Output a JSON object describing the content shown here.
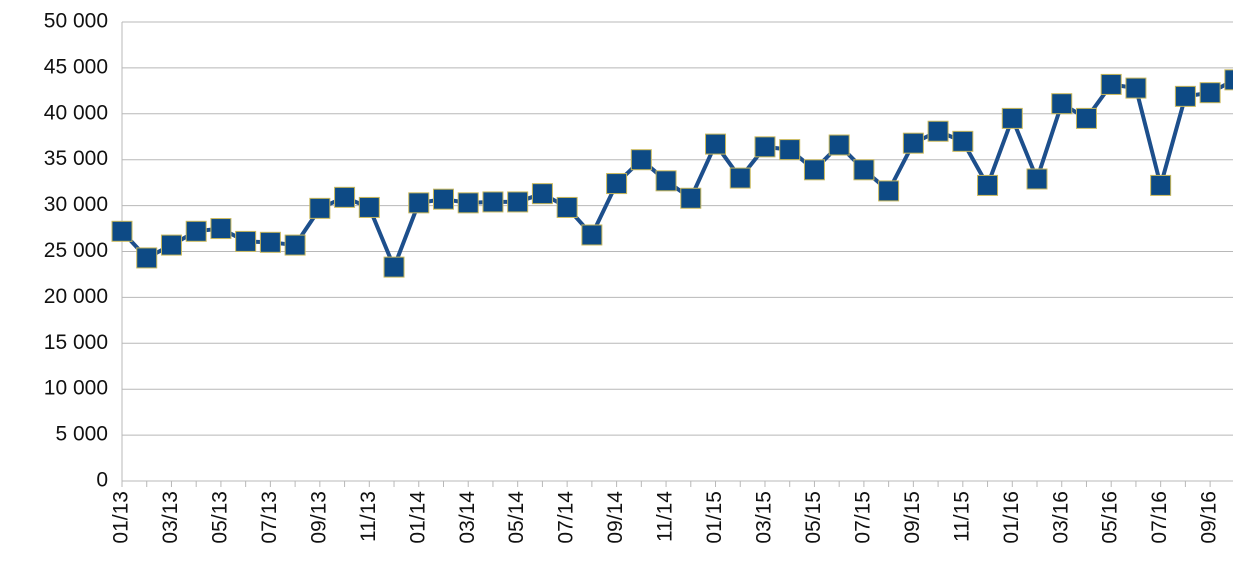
{
  "chart_data": {
    "type": "line",
    "categories": [
      "01/13",
      null,
      "03/13",
      null,
      "05/13",
      null,
      "07/13",
      null,
      "09/13",
      null,
      "11/13",
      null,
      "01/14",
      null,
      "03/14",
      null,
      "05/14",
      null,
      "07/14",
      null,
      "09/14",
      null,
      "11/14",
      null,
      "01/15",
      null,
      "03/15",
      null,
      "05/15",
      null,
      "07/15",
      null,
      "09/15",
      null,
      "11/15",
      null,
      "01/16",
      null,
      "03/16",
      null,
      "05/16",
      null,
      "07/16",
      null,
      "09/16",
      null
    ],
    "series": [
      {
        "color": "#1d4f8c",
        "values": [
          27200,
          24300,
          25700,
          27200,
          27500,
          26100,
          26000,
          25700,
          29700,
          30900,
          29800,
          23300,
          30300,
          30700,
          30300,
          30400,
          30400,
          31300,
          29800,
          26800,
          32400,
          35000,
          32700,
          30800,
          36700,
          33000,
          36400,
          36100,
          33900,
          36600,
          33900,
          31600,
          36800,
          38100,
          37000,
          32200,
          39500,
          32900,
          41100,
          39500,
          43200,
          42800,
          32200,
          41900,
          42300,
          43700
        ]
      }
    ],
    "ylim": [
      0,
      50000
    ],
    "yticks": [
      {
        "value": 0,
        "label": "0"
      },
      {
        "value": 5000,
        "label": "5 000"
      },
      {
        "value": 10000,
        "label": "10 000"
      },
      {
        "value": 15000,
        "label": "15 000"
      },
      {
        "value": 20000,
        "label": "20 000"
      },
      {
        "value": 25000,
        "label": "25 000"
      },
      {
        "value": 30000,
        "label": "30 000"
      },
      {
        "value": 35000,
        "label": "35 000"
      },
      {
        "value": 40000,
        "label": "40 000"
      },
      {
        "value": 45000,
        "label": "45 000"
      },
      {
        "value": 50000,
        "label": "50 000"
      }
    ],
    "grid": true
  }
}
